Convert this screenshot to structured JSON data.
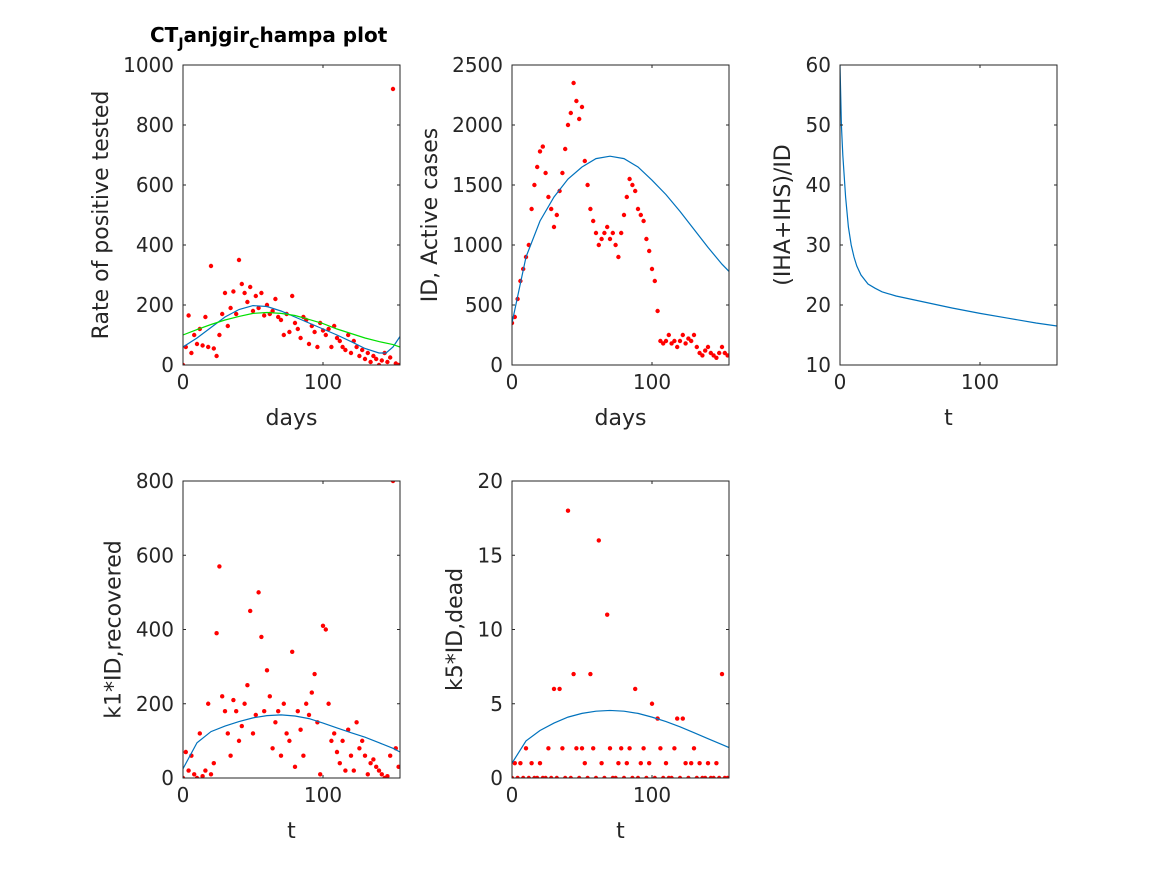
{
  "chart_data": [
    {
      "type": "scatter",
      "title": "CT_Janjgir_Champa plot",
      "xlabel": "days",
      "ylabel": "Rate of positive tested",
      "xlim": [
        0,
        155
      ],
      "ylim": [
        0,
        1000
      ],
      "xticks": [
        0,
        100
      ],
      "yticks": [
        0,
        200,
        400,
        600,
        800,
        1000
      ],
      "series": [
        {
          "kind": "points",
          "color": "#ff0000",
          "x": [
            0,
            2,
            4,
            6,
            8,
            10,
            12,
            14,
            16,
            18,
            20,
            22,
            24,
            26,
            28,
            30,
            32,
            34,
            36,
            38,
            40,
            42,
            44,
            46,
            48,
            50,
            52,
            54,
            56,
            58,
            60,
            62,
            64,
            66,
            68,
            70,
            72,
            74,
            76,
            78,
            80,
            82,
            84,
            86,
            88,
            90,
            92,
            94,
            96,
            98,
            100,
            102,
            104,
            106,
            108,
            110,
            112,
            114,
            116,
            118,
            120,
            122,
            124,
            126,
            128,
            130,
            132,
            134,
            136,
            138,
            140,
            142,
            144,
            146,
            148,
            150,
            152,
            154
          ],
          "y": [
            0,
            60,
            165,
            40,
            100,
            70,
            120,
            65,
            160,
            60,
            330,
            55,
            30,
            100,
            170,
            240,
            130,
            190,
            245,
            170,
            350,
            270,
            240,
            210,
            260,
            180,
            230,
            190,
            240,
            165,
            200,
            170,
            180,
            220,
            160,
            150,
            100,
            170,
            110,
            230,
            140,
            120,
            90,
            160,
            150,
            70,
            130,
            110,
            60,
            140,
            115,
            100,
            120,
            60,
            130,
            90,
            80,
            60,
            50,
            100,
            40,
            80,
            60,
            30,
            50,
            20,
            40,
            10,
            30,
            20,
            0,
            15,
            40,
            10,
            25,
            920,
            5,
            0
          ]
        },
        {
          "kind": "line",
          "color": "#0072bd",
          "x": [
            0,
            10,
            20,
            30,
            40,
            50,
            60,
            70,
            80,
            90,
            100,
            110,
            120,
            130,
            140,
            145,
            150,
            155
          ],
          "y": [
            60,
            90,
            125,
            160,
            185,
            198,
            195,
            180,
            160,
            140,
            120,
            100,
            78,
            55,
            40,
            40,
            60,
            95
          ]
        },
        {
          "kind": "line",
          "color": "#00e000",
          "x": [
            0,
            10,
            20,
            30,
            40,
            50,
            60,
            70,
            80,
            90,
            100,
            110,
            120,
            130,
            140,
            150,
            155
          ],
          "y": [
            100,
            118,
            135,
            150,
            162,
            172,
            175,
            172,
            165,
            152,
            138,
            120,
            105,
            90,
            78,
            68,
            60
          ]
        }
      ]
    },
    {
      "type": "scatter",
      "xlabel": "days",
      "ylabel": "ID, Active cases",
      "xlim": [
        0,
        155
      ],
      "ylim": [
        0,
        2500
      ],
      "xticks": [
        0,
        100
      ],
      "yticks": [
        0,
        500,
        1000,
        1500,
        2000,
        2500
      ],
      "series": [
        {
          "kind": "points",
          "color": "#ff0000",
          "x": [
            0,
            2,
            4,
            6,
            8,
            10,
            12,
            14,
            16,
            18,
            20,
            22,
            24,
            26,
            28,
            30,
            32,
            34,
            36,
            38,
            40,
            42,
            44,
            46,
            48,
            50,
            52,
            54,
            56,
            58,
            60,
            62,
            64,
            66,
            68,
            70,
            72,
            74,
            76,
            78,
            80,
            82,
            84,
            86,
            88,
            90,
            92,
            94,
            96,
            98,
            100,
            102,
            104,
            106,
            108,
            110,
            112,
            114,
            116,
            118,
            120,
            122,
            124,
            126,
            128,
            130,
            132,
            134,
            136,
            138,
            140,
            142,
            144,
            146,
            148,
            150,
            152,
            154
          ],
          "y": [
            350,
            400,
            550,
            700,
            800,
            900,
            1000,
            1300,
            1500,
            1650,
            1780,
            1820,
            1600,
            1400,
            1300,
            1150,
            1250,
            1450,
            1600,
            1800,
            2000,
            2100,
            2350,
            2200,
            2050,
            2150,
            1700,
            1500,
            1300,
            1200,
            1100,
            1000,
            1050,
            1100,
            1150,
            1050,
            1100,
            1000,
            900,
            1100,
            1250,
            1400,
            1550,
            1500,
            1450,
            1300,
            1250,
            1200,
            1050,
            950,
            800,
            700,
            450,
            200,
            180,
            200,
            250,
            180,
            200,
            150,
            200,
            250,
            180,
            220,
            200,
            250,
            150,
            100,
            80,
            120,
            150,
            100,
            80,
            60,
            100,
            150,
            100,
            80
          ]
        },
        {
          "kind": "line",
          "color": "#0072bd",
          "x": [
            0,
            10,
            20,
            30,
            40,
            50,
            60,
            70,
            80,
            90,
            100,
            110,
            120,
            130,
            140,
            150,
            155
          ],
          "y": [
            350,
            900,
            1200,
            1400,
            1550,
            1650,
            1720,
            1740,
            1720,
            1650,
            1540,
            1420,
            1280,
            1130,
            980,
            840,
            780
          ]
        }
      ]
    },
    {
      "type": "line",
      "xlabel": "t",
      "ylabel": "(IHA+IHS)/ID",
      "xlim": [
        0,
        155
      ],
      "ylim": [
        10,
        60
      ],
      "xticks": [
        0,
        100
      ],
      "yticks": [
        10,
        20,
        30,
        40,
        50,
        60
      ],
      "series": [
        {
          "kind": "line",
          "color": "#0072bd",
          "x": [
            0,
            1,
            2,
            4,
            6,
            8,
            10,
            12,
            15,
            20,
            25,
            30,
            40,
            50,
            60,
            80,
            100,
            120,
            140,
            155
          ],
          "y": [
            60,
            50,
            45,
            38,
            33,
            30,
            28,
            26.5,
            25,
            23.5,
            22.8,
            22.2,
            21.5,
            21,
            20.5,
            19.5,
            18.6,
            17.8,
            17.0,
            16.5
          ]
        }
      ]
    },
    {
      "type": "scatter",
      "xlabel": "t",
      "ylabel": "k1*ID,recovered",
      "xlim": [
        0,
        155
      ],
      "ylim": [
        0,
        800
      ],
      "xticks": [
        0,
        100
      ],
      "yticks": [
        0,
        200,
        400,
        600,
        800
      ],
      "series": [
        {
          "kind": "points",
          "color": "#ff0000",
          "x": [
            0,
            2,
            4,
            6,
            8,
            10,
            12,
            14,
            16,
            18,
            20,
            22,
            24,
            26,
            28,
            30,
            32,
            34,
            36,
            38,
            40,
            42,
            44,
            46,
            48,
            50,
            52,
            54,
            56,
            58,
            60,
            62,
            64,
            66,
            68,
            70,
            72,
            74,
            76,
            78,
            80,
            82,
            84,
            86,
            88,
            90,
            92,
            94,
            96,
            98,
            100,
            102,
            104,
            106,
            108,
            110,
            112,
            114,
            116,
            118,
            120,
            122,
            124,
            126,
            128,
            130,
            132,
            134,
            136,
            138,
            140,
            142,
            144,
            146,
            148,
            150,
            152,
            154
          ],
          "y": [
            0,
            70,
            20,
            60,
            10,
            0,
            120,
            5,
            20,
            200,
            10,
            40,
            390,
            570,
            220,
            180,
            120,
            60,
            210,
            180,
            100,
            140,
            200,
            250,
            450,
            120,
            170,
            500,
            380,
            180,
            290,
            220,
            80,
            150,
            180,
            60,
            200,
            120,
            100,
            340,
            30,
            180,
            130,
            60,
            200,
            170,
            230,
            280,
            150,
            10,
            410,
            400,
            200,
            100,
            120,
            70,
            40,
            100,
            20,
            130,
            60,
            20,
            150,
            80,
            100,
            60,
            10,
            40,
            50,
            30,
            20,
            10,
            0,
            5,
            60,
            800,
            80,
            30
          ]
        },
        {
          "kind": "line",
          "color": "#0072bd",
          "x": [
            0,
            10,
            20,
            30,
            40,
            50,
            60,
            70,
            80,
            90,
            100,
            110,
            120,
            130,
            140,
            150,
            155
          ],
          "y": [
            25,
            95,
            125,
            140,
            152,
            162,
            168,
            170,
            167,
            160,
            148,
            135,
            122,
            110,
            95,
            80,
            70
          ]
        }
      ]
    },
    {
      "type": "scatter",
      "xlabel": "t",
      "ylabel": "k5*ID,dead",
      "xlim": [
        0,
        155
      ],
      "ylim": [
        0,
        20
      ],
      "xticks": [
        0,
        100
      ],
      "yticks": [
        0,
        5,
        10,
        15,
        20
      ],
      "series": [
        {
          "kind": "points",
          "color": "#ff0000",
          "x": [
            0,
            2,
            4,
            6,
            8,
            10,
            12,
            14,
            16,
            18,
            20,
            22,
            24,
            26,
            28,
            30,
            32,
            34,
            36,
            38,
            40,
            42,
            44,
            46,
            48,
            50,
            52,
            54,
            56,
            58,
            60,
            62,
            64,
            66,
            68,
            70,
            72,
            74,
            76,
            78,
            80,
            82,
            84,
            86,
            88,
            90,
            92,
            94,
            96,
            98,
            100,
            102,
            104,
            106,
            108,
            110,
            112,
            114,
            116,
            118,
            120,
            122,
            124,
            126,
            128,
            130,
            132,
            134,
            136,
            138,
            140,
            142,
            144,
            146,
            148,
            150,
            152,
            154
          ],
          "y": [
            0,
            1,
            0,
            1,
            0,
            2,
            0,
            1,
            0,
            0,
            1,
            0,
            0,
            2,
            0,
            6,
            0,
            6,
            2,
            0,
            18,
            0,
            7,
            2,
            0,
            2,
            1,
            0,
            7,
            2,
            0,
            16,
            1,
            0,
            11,
            2,
            0,
            0,
            1,
            2,
            0,
            1,
            2,
            0,
            6,
            0,
            1,
            2,
            0,
            1,
            5,
            0,
            4,
            2,
            0,
            1,
            0,
            0,
            2,
            4,
            0,
            4,
            1,
            0,
            1,
            2,
            0,
            1,
            0,
            0,
            1,
            0,
            0,
            1,
            0,
            7,
            0,
            0
          ]
        },
        {
          "kind": "line",
          "color": "#0072bd",
          "x": [
            0,
            10,
            20,
            30,
            40,
            50,
            60,
            70,
            80,
            90,
            100,
            110,
            120,
            130,
            140,
            150,
            155
          ],
          "y": [
            1,
            2.5,
            3.2,
            3.7,
            4.1,
            4.35,
            4.5,
            4.55,
            4.5,
            4.35,
            4.1,
            3.8,
            3.45,
            3.05,
            2.65,
            2.25,
            2.05
          ]
        }
      ]
    }
  ]
}
